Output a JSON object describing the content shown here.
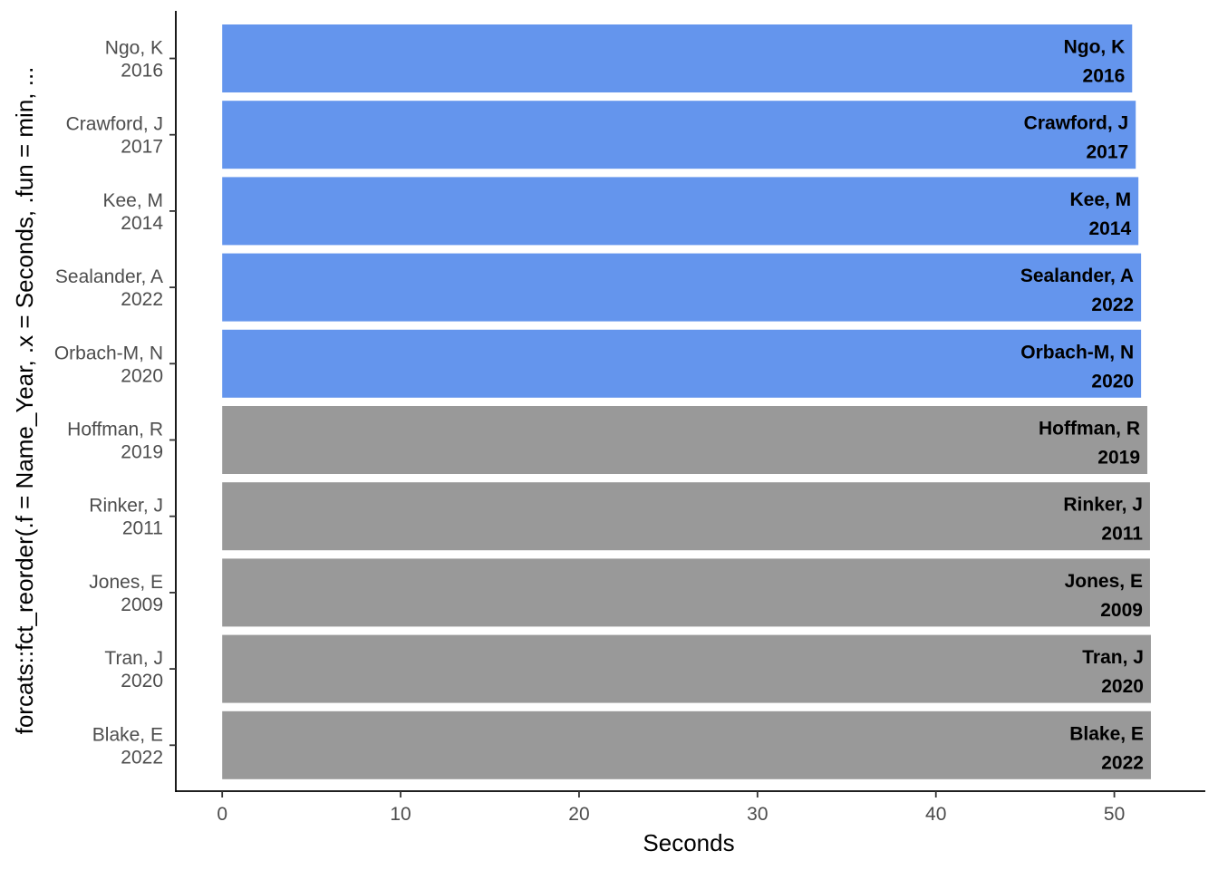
{
  "chart_data": {
    "type": "bar",
    "orientation": "horizontal",
    "xlabel": "Seconds",
    "ylabel": "forcats::fct_reorder(.f = Name_Year, .x = Seconds, .fun = min, ...",
    "xlim": [
      -2.6,
      55.1
    ],
    "xticks": [
      0,
      10,
      20,
      30,
      40,
      50
    ],
    "grid": false,
    "legend": "none",
    "colors": {
      "highlight": "#6495ED",
      "other": "#999999"
    },
    "categories": [
      {
        "name": "Ngo, K",
        "year": "2016",
        "value": 51.0,
        "highlight": true
      },
      {
        "name": "Crawford, J",
        "year": "2017",
        "value": 51.2,
        "highlight": true
      },
      {
        "name": "Kee, M",
        "year": "2014",
        "value": 51.35,
        "highlight": true
      },
      {
        "name": "Sealander, A",
        "year": "2022",
        "value": 51.5,
        "highlight": true
      },
      {
        "name": "Orbach-M, N",
        "year": "2020",
        "value": 51.5,
        "highlight": true
      },
      {
        "name": "Hoffman, R",
        "year": "2019",
        "value": 51.85,
        "highlight": false
      },
      {
        "name": "Rinker, J",
        "year": "2011",
        "value": 52.0,
        "highlight": false
      },
      {
        "name": "Jones, E",
        "year": "2009",
        "value": 52.0,
        "highlight": false
      },
      {
        "name": "Tran, J",
        "year": "2020",
        "value": 52.05,
        "highlight": false
      },
      {
        "name": "Blake, E",
        "year": "2022",
        "value": 52.05,
        "highlight": false
      }
    ]
  }
}
